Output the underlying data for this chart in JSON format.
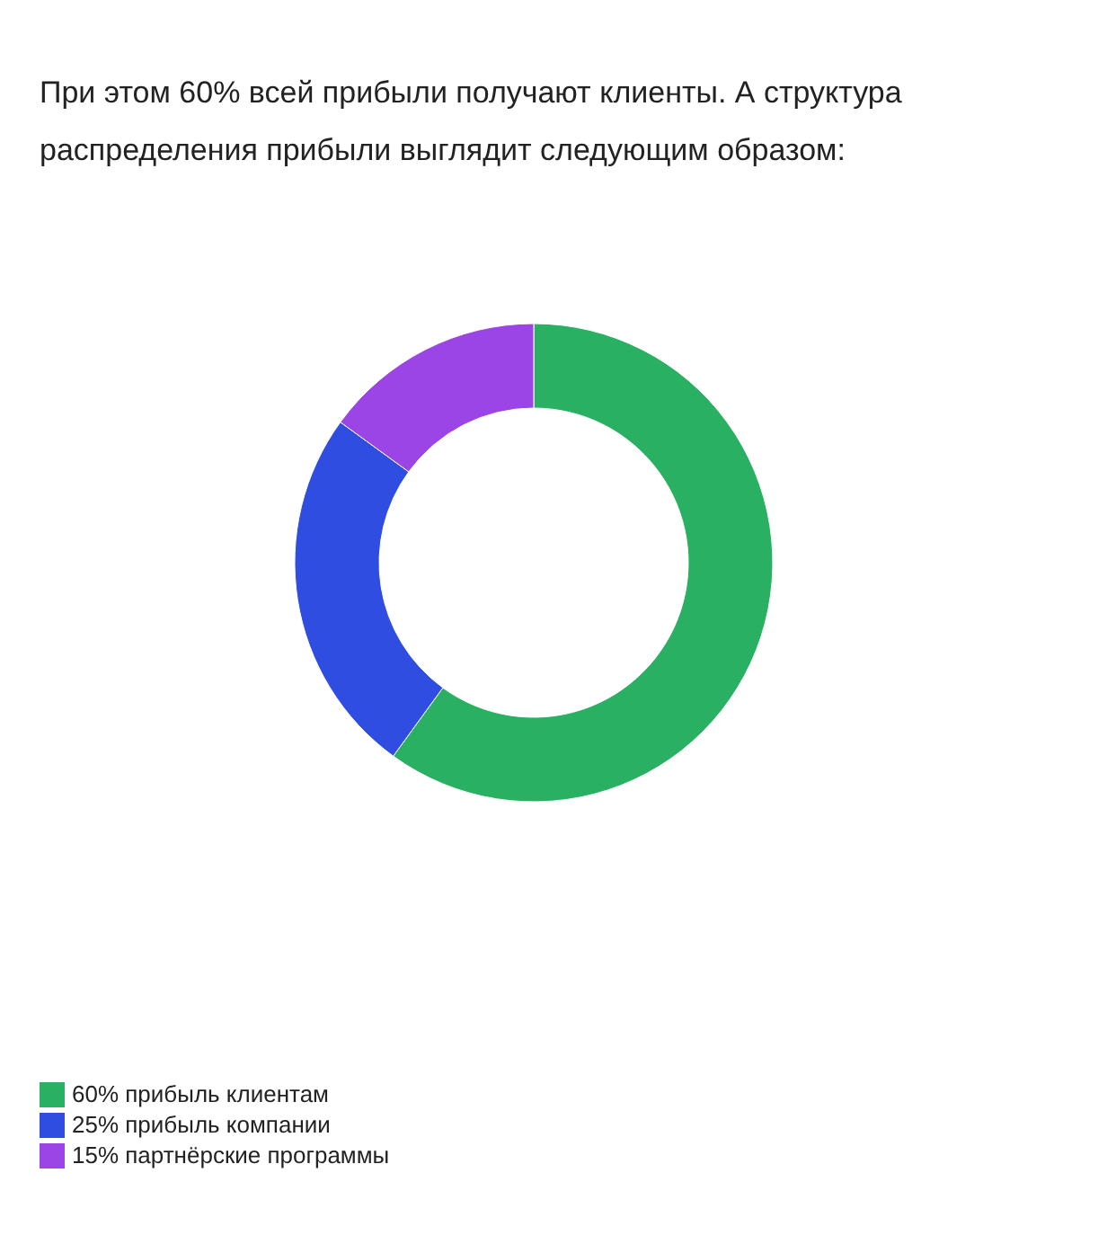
{
  "chart_data": {
    "type": "donut",
    "title": "При этом 60% всей прибыли получают клиенты. А структура распределения прибыли выглядит следующим образом:",
    "categories": [
      "60% прибыль клиентам",
      "25% прибыль компании",
      "15% партнёрские программы"
    ],
    "values": [
      60,
      25,
      15
    ],
    "colors": [
      "#29b062",
      "#2f4de0",
      "#9b45e6"
    ],
    "legend": "bottom left"
  }
}
